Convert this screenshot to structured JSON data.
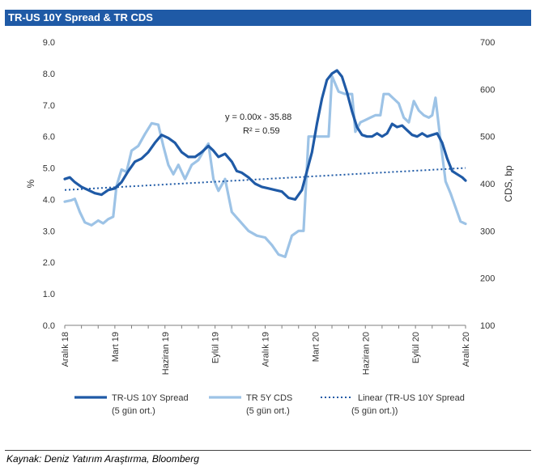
{
  "title": "TR-US 10Y Spread & TR CDS",
  "source": "Kaynak: Deniz Yatırım Araştırma, Bloomberg",
  "chart_data": {
    "type": "line",
    "y_left": {
      "label": "%",
      "range": [
        0,
        9
      ],
      "ticks": [
        "0.0",
        "1.0",
        "2.0",
        "3.0",
        "4.0",
        "5.0",
        "6.0",
        "7.0",
        "8.0",
        "9.0"
      ]
    },
    "y_right": {
      "label": "CDS, bp",
      "range": [
        100,
        700
      ],
      "ticks": [
        "100",
        "200",
        "300",
        "400",
        "500",
        "600",
        "700"
      ]
    },
    "x_range": [
      0,
      24
    ],
    "x_ticks": [
      {
        "label": "Aralık 18",
        "x": 0
      },
      {
        "label": "Mart 19",
        "x": 3
      },
      {
        "label": "Haziran 19",
        "x": 6
      },
      {
        "label": "Eylül 19",
        "x": 9
      },
      {
        "label": "Aralık 19",
        "x": 12
      },
      {
        "label": "Mart 20",
        "x": 15
      },
      {
        "label": "Haziran 20",
        "x": 18
      },
      {
        "label": "Eylül 20",
        "x": 21
      },
      {
        "label": "Aralık 20",
        "x": 24
      }
    ],
    "annotation": {
      "equation": "y = 0.00x  - 35.88",
      "r2": "R² = 0.59"
    },
    "legend": [
      {
        "name": "TR-US 10Y Spread",
        "sub": "(5 gün ort.)",
        "style": "thick-dark"
      },
      {
        "name": "TR 5Y CDS",
        "sub": "(5 gün ort.)",
        "style": "thick-light"
      },
      {
        "name": "Linear (TR-US 10Y Spread",
        "sub": "(5 gün ort.))",
        "style": "dotted"
      }
    ],
    "colors": {
      "spread": "#1f5aa6",
      "cds": "#9dc3e6",
      "trend": "#1f5aa6"
    },
    "series": [
      {
        "key": "spread",
        "axis": "left",
        "points": [
          [
            0,
            4.65
          ],
          [
            0.3,
            4.7
          ],
          [
            0.6,
            4.55
          ],
          [
            1,
            4.4
          ],
          [
            1.4,
            4.3
          ],
          [
            1.8,
            4.2
          ],
          [
            2.2,
            4.15
          ],
          [
            2.6,
            4.3
          ],
          [
            3,
            4.35
          ],
          [
            3.4,
            4.55
          ],
          [
            3.8,
            4.9
          ],
          [
            4.2,
            5.2
          ],
          [
            4.6,
            5.3
          ],
          [
            5,
            5.5
          ],
          [
            5.4,
            5.8
          ],
          [
            5.8,
            6.05
          ],
          [
            6.2,
            5.95
          ],
          [
            6.6,
            5.8
          ],
          [
            7,
            5.5
          ],
          [
            7.4,
            5.35
          ],
          [
            7.8,
            5.35
          ],
          [
            8.2,
            5.5
          ],
          [
            8.6,
            5.7
          ],
          [
            8.9,
            5.55
          ],
          [
            9.2,
            5.35
          ],
          [
            9.6,
            5.45
          ],
          [
            10,
            5.2
          ],
          [
            10.3,
            4.9
          ],
          [
            10.6,
            4.85
          ],
          [
            11,
            4.7
          ],
          [
            11.4,
            4.5
          ],
          [
            11.8,
            4.4
          ],
          [
            12.2,
            4.35
          ],
          [
            12.6,
            4.3
          ],
          [
            13,
            4.25
          ],
          [
            13.4,
            4.05
          ],
          [
            13.8,
            4.0
          ],
          [
            14.2,
            4.3
          ],
          [
            14.5,
            4.9
          ],
          [
            14.8,
            5.5
          ],
          [
            15.1,
            6.4
          ],
          [
            15.4,
            7.2
          ],
          [
            15.7,
            7.8
          ],
          [
            16,
            8.0
          ],
          [
            16.3,
            8.1
          ],
          [
            16.6,
            7.9
          ],
          [
            16.9,
            7.4
          ],
          [
            17.2,
            6.8
          ],
          [
            17.5,
            6.3
          ],
          [
            17.8,
            6.05
          ],
          [
            18.1,
            6.0
          ],
          [
            18.4,
            6.0
          ],
          [
            18.7,
            6.1
          ],
          [
            19,
            6.0
          ],
          [
            19.3,
            6.1
          ],
          [
            19.6,
            6.4
          ],
          [
            19.9,
            6.3
          ],
          [
            20.2,
            6.35
          ],
          [
            20.5,
            6.2
          ],
          [
            20.8,
            6.05
          ],
          [
            21.1,
            6.0
          ],
          [
            21.4,
            6.1
          ],
          [
            21.7,
            6.0
          ],
          [
            22,
            6.05
          ],
          [
            22.3,
            6.1
          ],
          [
            22.6,
            5.8
          ],
          [
            22.9,
            5.3
          ],
          [
            23.2,
            4.9
          ],
          [
            23.5,
            4.8
          ],
          [
            23.8,
            4.7
          ],
          [
            24,
            4.6
          ]
        ]
      },
      {
        "key": "cds",
        "axis": "right",
        "points": [
          [
            0,
            362
          ],
          [
            0.4,
            365
          ],
          [
            0.6,
            368
          ],
          [
            0.9,
            340
          ],
          [
            1.2,
            318
          ],
          [
            1.6,
            312
          ],
          [
            2,
            322
          ],
          [
            2.3,
            316
          ],
          [
            2.6,
            325
          ],
          [
            2.9,
            330
          ],
          [
            3.1,
            395
          ],
          [
            3.4,
            430
          ],
          [
            3.7,
            425
          ],
          [
            4,
            470
          ],
          [
            4.4,
            480
          ],
          [
            4.8,
            505
          ],
          [
            5.2,
            528
          ],
          [
            5.6,
            525
          ],
          [
            5.9,
            480
          ],
          [
            6.2,
            440
          ],
          [
            6.5,
            420
          ],
          [
            6.8,
            440
          ],
          [
            7.2,
            410
          ],
          [
            7.6,
            440
          ],
          [
            8,
            450
          ],
          [
            8.4,
            475
          ],
          [
            8.6,
            485
          ],
          [
            8.9,
            410
          ],
          [
            9.2,
            385
          ],
          [
            9.6,
            410
          ],
          [
            10,
            340
          ],
          [
            10.5,
            320
          ],
          [
            11,
            300
          ],
          [
            11.5,
            290
          ],
          [
            12,
            286
          ],
          [
            12.4,
            270
          ],
          [
            12.8,
            250
          ],
          [
            13.2,
            245
          ],
          [
            13.6,
            290
          ],
          [
            14,
            300
          ],
          [
            14.3,
            300
          ],
          [
            14.6,
            500
          ],
          [
            15,
            500
          ],
          [
            15.4,
            500
          ],
          [
            15.8,
            500
          ],
          [
            16,
            628
          ],
          [
            16.4,
            595
          ],
          [
            16.8,
            590
          ],
          [
            17.2,
            590
          ],
          [
            17.4,
            510
          ],
          [
            17.7,
            530
          ],
          [
            18,
            535
          ],
          [
            18.3,
            540
          ],
          [
            18.6,
            545
          ],
          [
            18.9,
            545
          ],
          [
            19.1,
            590
          ],
          [
            19.4,
            590
          ],
          [
            19.7,
            580
          ],
          [
            20,
            570
          ],
          [
            20.3,
            540
          ],
          [
            20.6,
            530
          ],
          [
            20.9,
            575
          ],
          [
            21.2,
            555
          ],
          [
            21.5,
            545
          ],
          [
            21.8,
            540
          ],
          [
            22,
            545
          ],
          [
            22.2,
            582
          ],
          [
            22.5,
            490
          ],
          [
            22.8,
            405
          ],
          [
            23.1,
            380
          ],
          [
            23.4,
            350
          ],
          [
            23.7,
            320
          ],
          [
            24,
            315
          ]
        ]
      }
    ],
    "trend": {
      "axis": "left",
      "points": [
        [
          0,
          4.3
        ],
        [
          24,
          5.0
        ]
      ]
    }
  }
}
